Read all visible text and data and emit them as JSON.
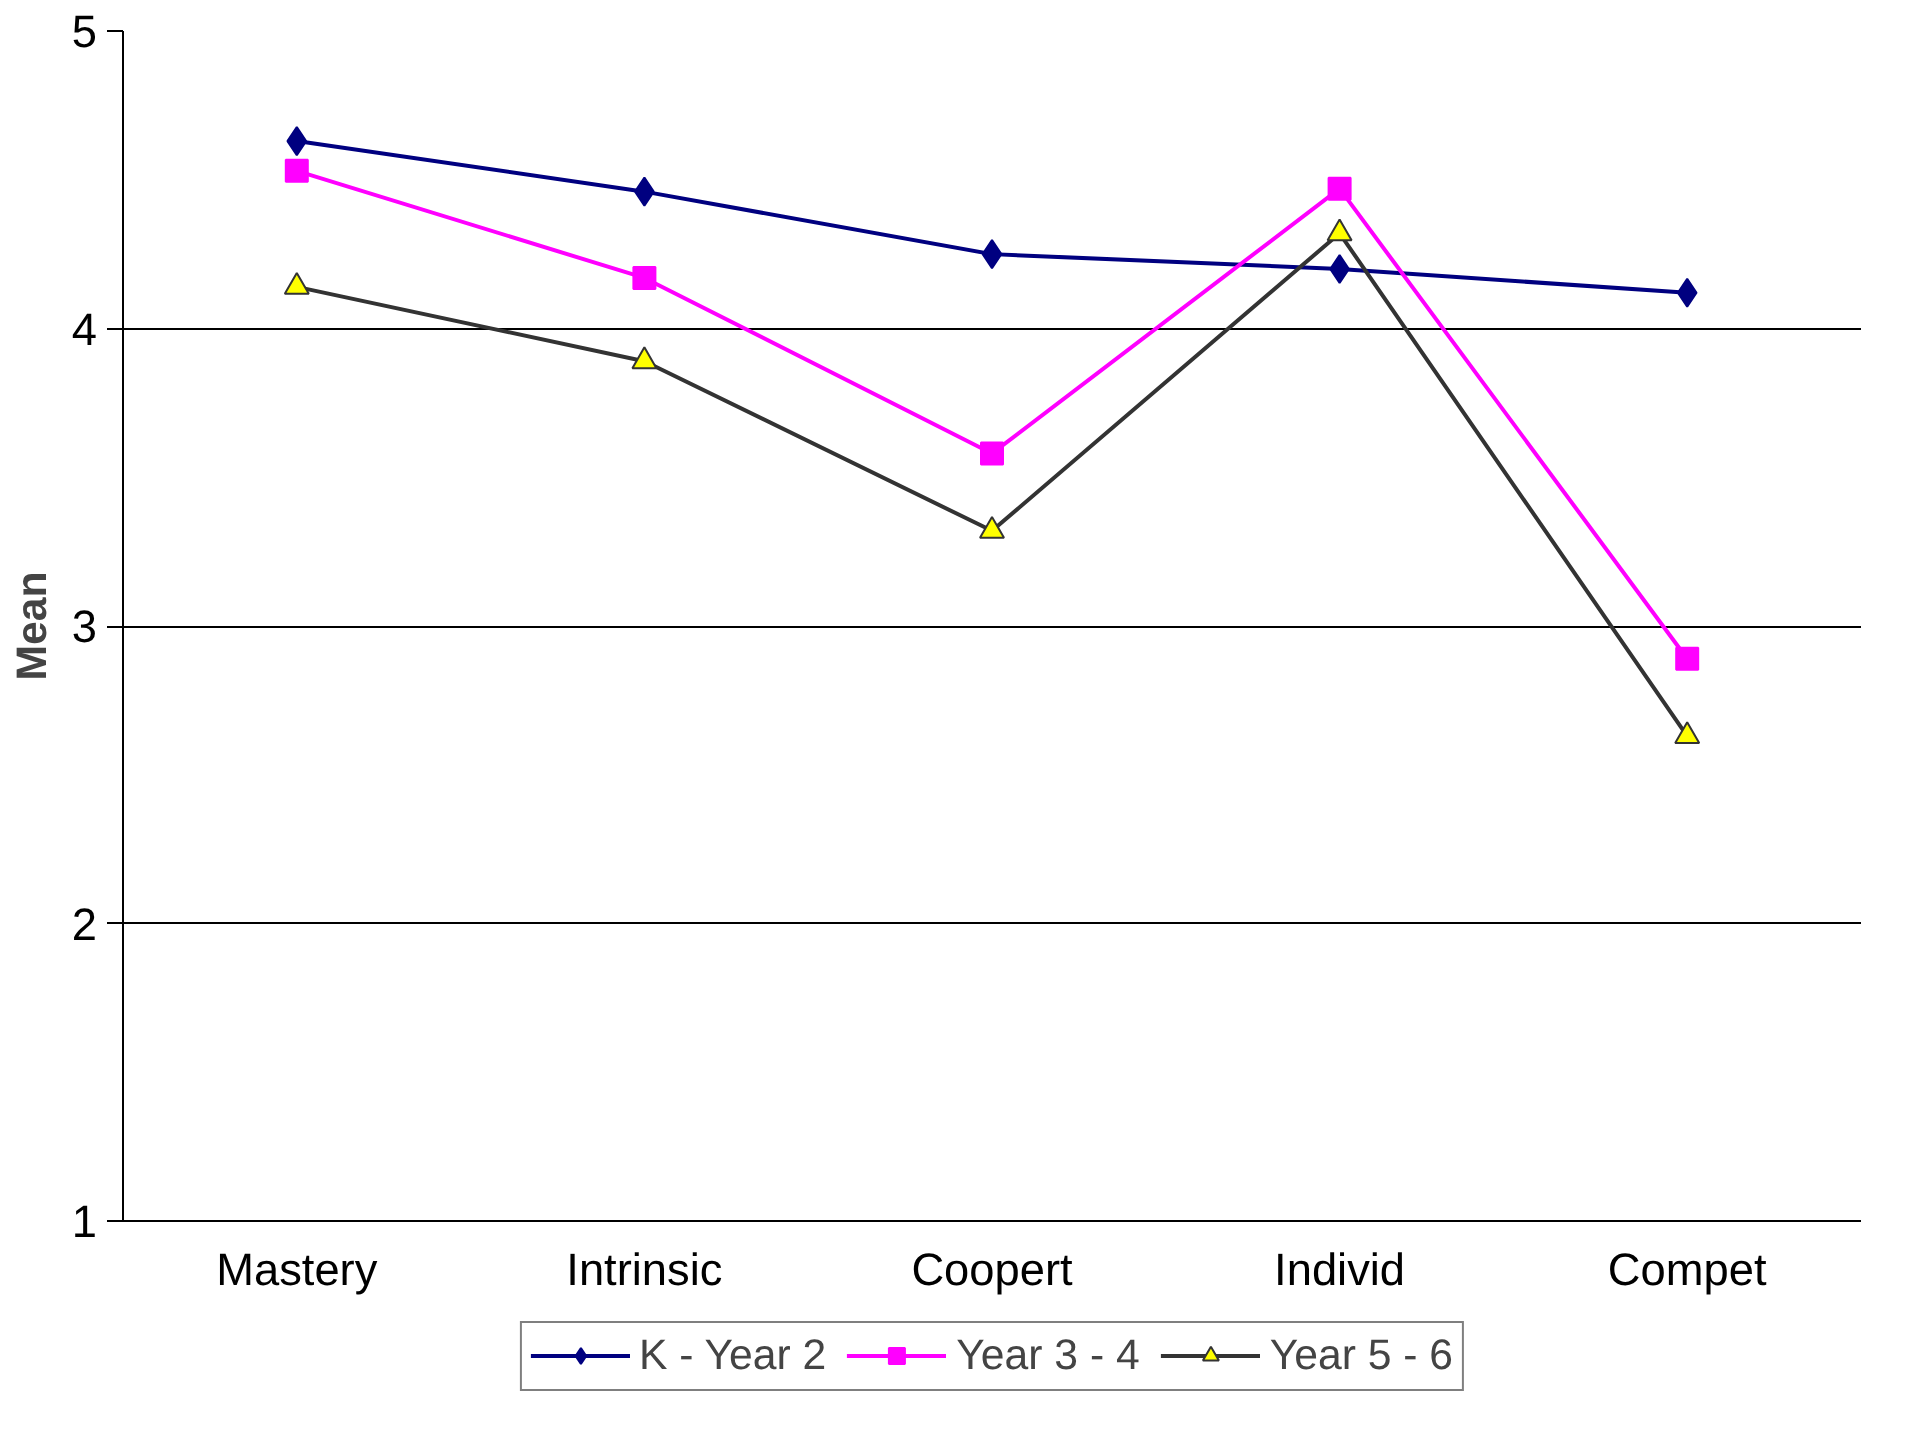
{
  "chart_data": {
    "type": "line",
    "ylabel": "Mean",
    "categories": [
      "Mastery",
      "Intrinsic",
      "Coopert",
      "Individ",
      "Compet"
    ],
    "ylim": [
      1,
      5
    ],
    "yticks": [
      1,
      2,
      3,
      4,
      5
    ],
    "grid": "y",
    "legend": "bottom",
    "series": [
      {
        "name": "K - Year 2",
        "color": "#000080",
        "marker": "diamond",
        "values": [
          4.63,
          4.46,
          4.25,
          4.2,
          4.12
        ]
      },
      {
        "name": "Year 3 - 4",
        "color": "#ff00ff",
        "marker": "square",
        "values": [
          4.53,
          4.17,
          3.58,
          4.47,
          2.89
        ]
      },
      {
        "name": "Year 5 - 6",
        "color": "#333333",
        "marker": "triangle",
        "values": [
          4.14,
          3.89,
          3.32,
          4.32,
          2.63
        ]
      }
    ]
  }
}
